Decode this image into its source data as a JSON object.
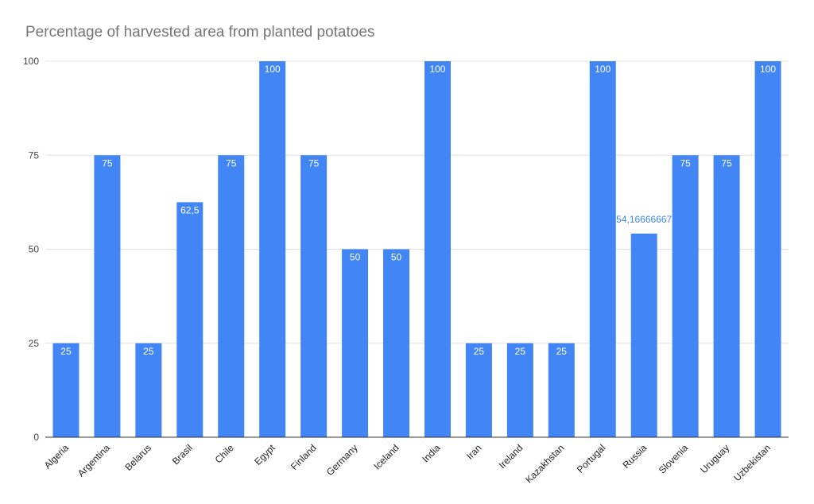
{
  "chart_data": {
    "type": "bar",
    "title": "Percentage of harvested area from planted potatoes",
    "xlabel": "",
    "ylabel": "",
    "categories": [
      "Algeria",
      "Argentina",
      "Belarus",
      "Brasil",
      "Chile",
      "Egypt",
      "Finland",
      "Germany",
      "Iceland",
      "India",
      "Iran",
      "Ireland",
      "Kazakhstan",
      "Portugal",
      "Russia",
      "Slovenia",
      "Uruguay",
      "Uzbekistan"
    ],
    "values": [
      25,
      75,
      25,
      62.5,
      75,
      100,
      75,
      50,
      50,
      100,
      25,
      25,
      25,
      100,
      54.16666667,
      75,
      75,
      100
    ],
    "data_labels": [
      "25",
      "75",
      "25",
      "62,5",
      "75",
      "100",
      "75",
      "50",
      "50",
      "100",
      "25",
      "25",
      "25",
      "100",
      "54,16666667",
      "75",
      "75",
      "100"
    ],
    "ylim": [
      0,
      100
    ],
    "yticks": [
      0,
      25,
      50,
      75,
      100
    ],
    "grid": true,
    "legend": "none",
    "colors": {
      "bar": "#4285f4",
      "grid": "#e0e0e0",
      "axis": "#333333",
      "label_inside": "#ffffff",
      "label_outside": "#4285f4"
    }
  }
}
